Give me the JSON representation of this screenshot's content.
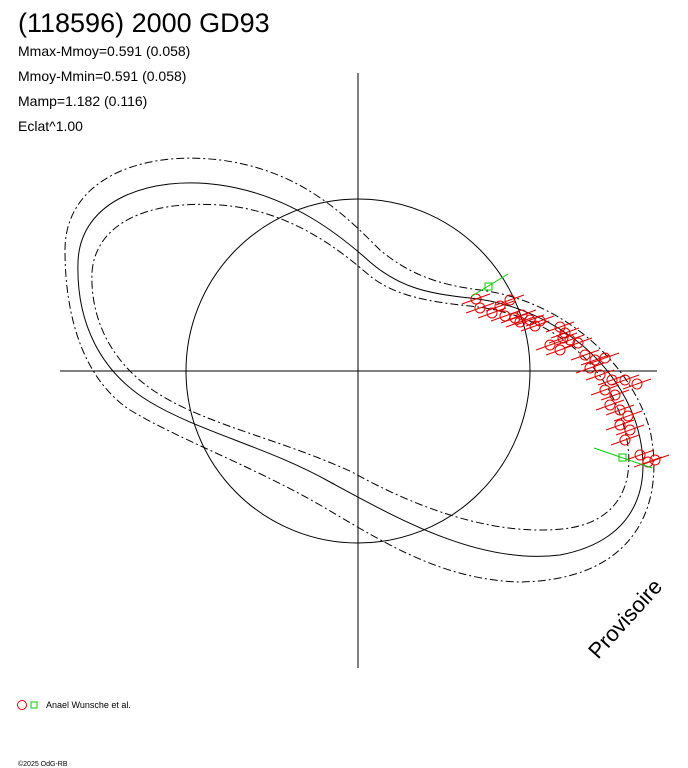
{
  "header": {
    "title": "(118596) 2000 GD93",
    "lines": [
      "Mmax-Mmoy=0.591 (0.058)",
      "Mmoy-Mmin=0.591 (0.058)",
      "Mamp=1.182 (0.116)",
      "Eclat^1.00"
    ]
  },
  "watermark": "Provisoire",
  "legend": {
    "label": "Anael Wunsche et al."
  },
  "footer": "©2025 OdG-RB"
}
